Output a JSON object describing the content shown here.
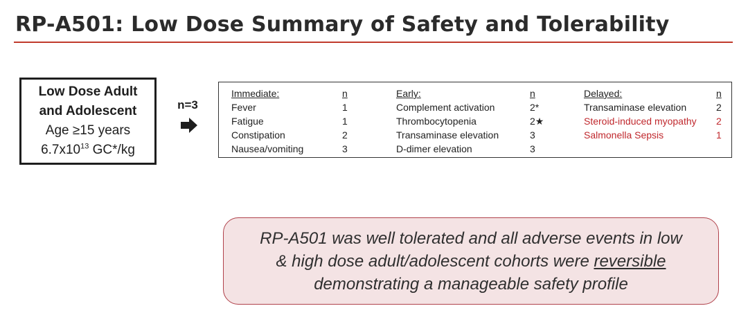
{
  "title": "RP-A501: Low Dose Summary of Safety and Tolerability",
  "cohort": {
    "line1": "Low Dose Adult",
    "line2": "and Adolescent",
    "line3": "Age ≥15 years",
    "dose_base": "6.7x10",
    "dose_exp": "13",
    "dose_unit": " GC*/kg"
  },
  "n_label": "n=3",
  "adverse_events": {
    "immediate": {
      "header": "Immediate:",
      "n_header": "n",
      "items": [
        {
          "name": "Fever",
          "n": "1"
        },
        {
          "name": "Fatigue",
          "n": "1"
        },
        {
          "name": "Constipation",
          "n": "2"
        },
        {
          "name": "Nausea/vomiting",
          "n": "3"
        }
      ]
    },
    "early": {
      "header": "Early:",
      "n_header": "n",
      "items": [
        {
          "name": "Complement activation",
          "n": "2*"
        },
        {
          "name": "Thrombocytopenia",
          "n": "2★"
        },
        {
          "name": "Transaminase elevation",
          "n": "3"
        },
        {
          "name": "D-dimer elevation",
          "n": "3"
        }
      ]
    },
    "delayed": {
      "header": "Delayed:",
      "n_header": "n",
      "items": [
        {
          "name": "Transaminase elevation",
          "n": "2"
        },
        {
          "name": "Steroid-induced myopathy",
          "n": "2"
        },
        {
          "name": "Salmonella Sepsis",
          "n": "1"
        }
      ]
    },
    "highlight_color": "#c0282d"
  },
  "note": {
    "line1": "RP-A501 was well tolerated and all adverse events in low",
    "line2_pre": "& high dose adult/adolescent cohorts were ",
    "line2_underlined": "reversible",
    "line3": "demonstrating a manageable safety profile"
  },
  "colors": {
    "accent_rule": "#c0392b",
    "note_background": "#f4e3e4",
    "note_border": "#b0414a"
  }
}
